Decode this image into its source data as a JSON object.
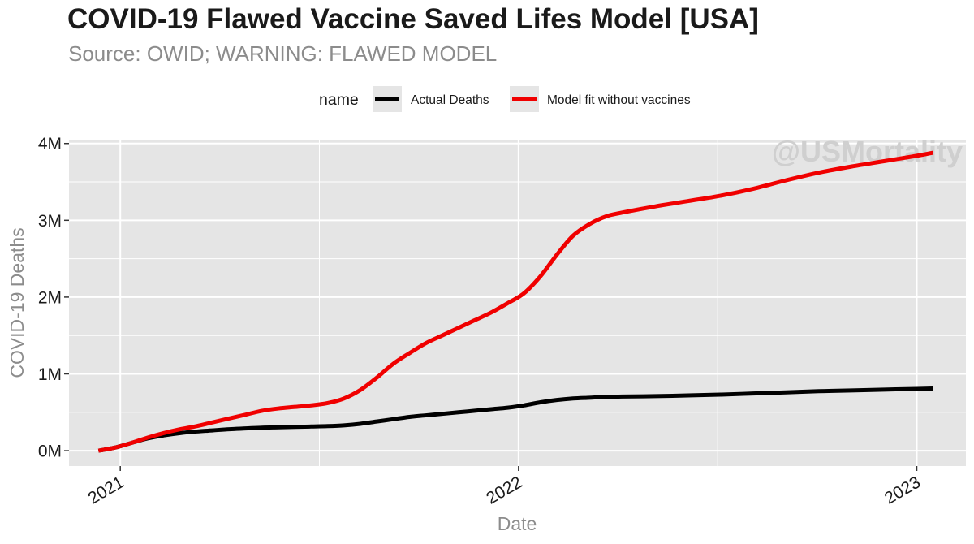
{
  "title": "COVID-19 Flawed Vaccine Saved Lifes Model [USA]",
  "subtitle": "Source: OWID; WARNING: FLAWED MODEL",
  "watermark": "@USMortality",
  "colors": {
    "panel": "#e5e5e5",
    "grid": "#ffffff",
    "actual": "#000000",
    "model": "#f00000"
  },
  "chart_data": {
    "type": "line",
    "title": "COVID-19 Flawed Vaccine Saved Lifes Model [USA]",
    "subtitle": "Source: OWID; WARNING: FLAWED MODEL",
    "xlabel": "Date",
    "ylabel": "COVID-19 Deaths",
    "x_type": "date",
    "xlim": [
      "2020-11-15",
      "2023-02-15"
    ],
    "ylim": [
      -0.2,
      4.05
    ],
    "y_unit": "M",
    "x_ticks": [
      {
        "value": "2021-01-01",
        "label": "2021"
      },
      {
        "value": "2022-01-01",
        "label": "2022"
      },
      {
        "value": "2023-01-01",
        "label": "2023"
      }
    ],
    "y_ticks": [
      {
        "value": 0,
        "label": "0M"
      },
      {
        "value": 1,
        "label": "1M"
      },
      {
        "value": 2,
        "label": "2M"
      },
      {
        "value": 3,
        "label": "3M"
      },
      {
        "value": 4,
        "label": "4M"
      }
    ],
    "grid": true,
    "legend": {
      "title": "name",
      "position": "top"
    },
    "series": [
      {
        "name": "Actual Deaths",
        "color": "#000000",
        "points": [
          [
            "2020-12-12",
            0.0
          ],
          [
            "2020-12-27",
            0.04
          ],
          [
            "2021-01-11",
            0.1
          ],
          [
            "2021-01-26",
            0.16
          ],
          [
            "2021-02-10",
            0.2
          ],
          [
            "2021-02-25",
            0.23
          ],
          [
            "2021-03-12",
            0.25
          ],
          [
            "2021-03-27",
            0.265
          ],
          [
            "2021-04-11",
            0.28
          ],
          [
            "2021-04-26",
            0.29
          ],
          [
            "2021-05-11",
            0.3
          ],
          [
            "2021-05-26",
            0.305
          ],
          [
            "2021-06-10",
            0.31
          ],
          [
            "2021-06-25",
            0.315
          ],
          [
            "2021-07-10",
            0.32
          ],
          [
            "2021-07-25",
            0.33
          ],
          [
            "2021-08-09",
            0.35
          ],
          [
            "2021-08-24",
            0.38
          ],
          [
            "2021-09-08",
            0.41
          ],
          [
            "2021-09-23",
            0.44
          ],
          [
            "2021-10-08",
            0.46
          ],
          [
            "2021-10-23",
            0.48
          ],
          [
            "2021-11-07",
            0.5
          ],
          [
            "2021-11-22",
            0.52
          ],
          [
            "2021-12-07",
            0.54
          ],
          [
            "2021-12-22",
            0.56
          ],
          [
            "2022-01-06",
            0.59
          ],
          [
            "2022-01-21",
            0.63
          ],
          [
            "2022-02-05",
            0.66
          ],
          [
            "2022-02-20",
            0.68
          ],
          [
            "2022-03-07",
            0.69
          ],
          [
            "2022-03-22",
            0.7
          ],
          [
            "2022-04-06",
            0.705
          ],
          [
            "2022-05-06",
            0.71
          ],
          [
            "2022-06-05",
            0.72
          ],
          [
            "2022-07-05",
            0.73
          ],
          [
            "2022-08-04",
            0.745
          ],
          [
            "2022-09-03",
            0.76
          ],
          [
            "2022-10-03",
            0.775
          ],
          [
            "2022-11-02",
            0.785
          ],
          [
            "2022-12-02",
            0.795
          ],
          [
            "2023-01-01",
            0.805
          ],
          [
            "2023-01-16",
            0.81
          ]
        ]
      },
      {
        "name": "Model fit without vaccines",
        "color": "#f00000",
        "points": [
          [
            "2020-12-12",
            0.0
          ],
          [
            "2020-12-27",
            0.04
          ],
          [
            "2021-01-11",
            0.1
          ],
          [
            "2021-01-26",
            0.17
          ],
          [
            "2021-02-10",
            0.23
          ],
          [
            "2021-02-25",
            0.28
          ],
          [
            "2021-03-12",
            0.32
          ],
          [
            "2021-03-27",
            0.37
          ],
          [
            "2021-04-11",
            0.42
          ],
          [
            "2021-04-26",
            0.47
          ],
          [
            "2021-05-11",
            0.52
          ],
          [
            "2021-05-26",
            0.55
          ],
          [
            "2021-06-10",
            0.57
          ],
          [
            "2021-06-25",
            0.59
          ],
          [
            "2021-07-10",
            0.62
          ],
          [
            "2021-07-25",
            0.68
          ],
          [
            "2021-08-09",
            0.79
          ],
          [
            "2021-08-24",
            0.95
          ],
          [
            "2021-09-08",
            1.13
          ],
          [
            "2021-09-23",
            1.27
          ],
          [
            "2021-10-08",
            1.4
          ],
          [
            "2021-10-23",
            1.5
          ],
          [
            "2021-11-07",
            1.6
          ],
          [
            "2021-11-22",
            1.7
          ],
          [
            "2021-12-07",
            1.8
          ],
          [
            "2021-12-22",
            1.92
          ],
          [
            "2022-01-06",
            2.05
          ],
          [
            "2022-01-21",
            2.27
          ],
          [
            "2022-02-05",
            2.55
          ],
          [
            "2022-02-20",
            2.8
          ],
          [
            "2022-03-07",
            2.95
          ],
          [
            "2022-03-22",
            3.05
          ],
          [
            "2022-04-06",
            3.1
          ],
          [
            "2022-05-06",
            3.18
          ],
          [
            "2022-06-05",
            3.25
          ],
          [
            "2022-07-05",
            3.32
          ],
          [
            "2022-08-04",
            3.41
          ],
          [
            "2022-09-03",
            3.52
          ],
          [
            "2022-10-03",
            3.62
          ],
          [
            "2022-11-02",
            3.7
          ],
          [
            "2022-12-02",
            3.77
          ],
          [
            "2023-01-01",
            3.84
          ],
          [
            "2023-01-16",
            3.88
          ]
        ]
      }
    ]
  }
}
